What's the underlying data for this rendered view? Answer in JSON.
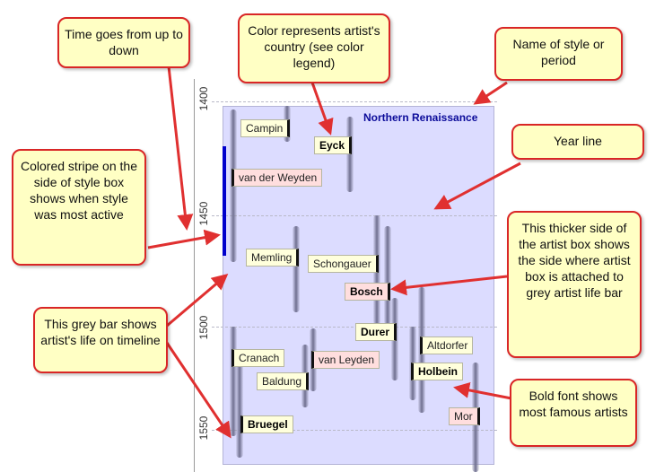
{
  "timeline": {
    "years": [
      "1400",
      "1450",
      "1500",
      "1550"
    ]
  },
  "style": {
    "name": "Northern Renaissance",
    "stripe_color": "#0000cc",
    "box_color": "#dcdcff"
  },
  "artists": [
    {
      "name": "Campin",
      "famous": false,
      "country_color": "#ffffdc"
    },
    {
      "name": "Eyck",
      "famous": true,
      "country_color": "#ffffdc"
    },
    {
      "name": "van der Weyden",
      "famous": false,
      "country_color": "#ffdede"
    },
    {
      "name": "Memling",
      "famous": false,
      "country_color": "#ffffdc"
    },
    {
      "name": "Schongauer",
      "famous": false,
      "country_color": "#ffffdc"
    },
    {
      "name": "Bosch",
      "famous": true,
      "country_color": "#ffdede"
    },
    {
      "name": "Durer",
      "famous": true,
      "country_color": "#ffffdc"
    },
    {
      "name": "Altdorfer",
      "famous": false,
      "country_color": "#ffffdc"
    },
    {
      "name": "Cranach",
      "famous": false,
      "country_color": "#ffffdc"
    },
    {
      "name": "van Leyden",
      "famous": false,
      "country_color": "#ffdede"
    },
    {
      "name": "Holbein",
      "famous": true,
      "country_color": "#ffffdc"
    },
    {
      "name": "Baldung",
      "famous": false,
      "country_color": "#ffffdc"
    },
    {
      "name": "Bruegel",
      "famous": true,
      "country_color": "#ffffdc"
    },
    {
      "name": "Mor",
      "famous": false,
      "country_color": "#ffdede"
    }
  ],
  "callouts": {
    "time": "Time goes from up to down",
    "color": "Color represents artist's country (see color legend)",
    "style_name": "Name of style or period",
    "year_line": "Year line",
    "stripe": "Colored stripe on the side of style box shows when style was most active",
    "thicker_side": "This thicker side of the artist box shows the side where artist box is attached to grey artist life bar",
    "grey_bar": "This grey bar shows artist's life on timeline",
    "bold_font": "Bold font shows most famous artists"
  },
  "colors": {
    "callout_border": "#d92626",
    "callout_fill": "#ffffc4"
  }
}
